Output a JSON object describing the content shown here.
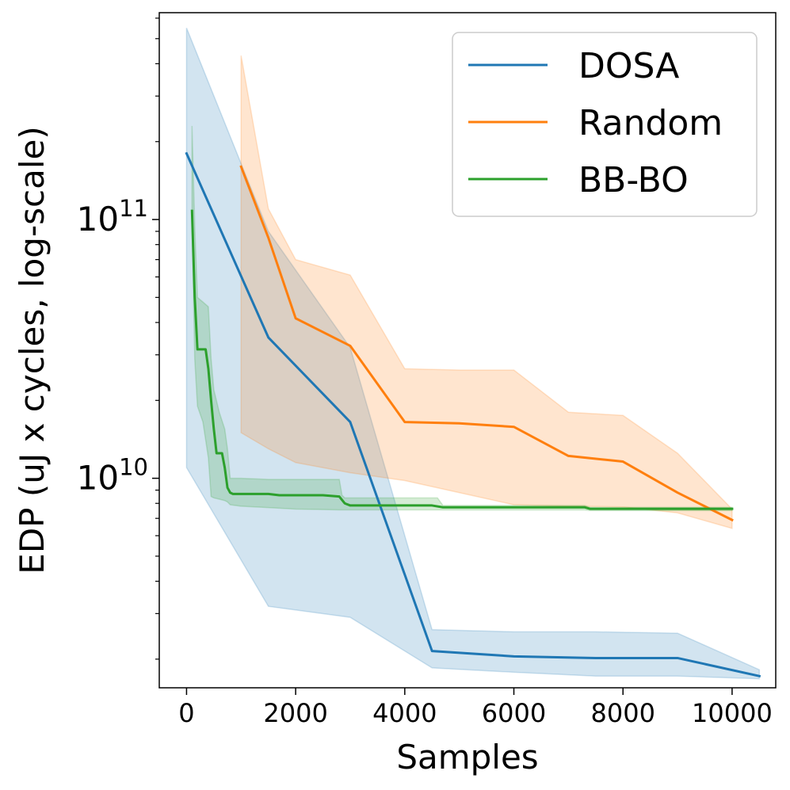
{
  "chart_data": {
    "type": "line",
    "title": "",
    "xlabel": "Samples",
    "ylabel": "EDP (uJ x cycles, log-scale)",
    "xlim": [
      -500,
      10800
    ],
    "ylim": [
      1550000000.0,
      630000000000.0
    ],
    "yscale": "log",
    "x_ticks": [
      0,
      2000,
      4000,
      6000,
      8000,
      10000
    ],
    "x_tick_labels": [
      "0",
      "2000",
      "4000",
      "6000",
      "8000",
      "10000"
    ],
    "y_major_ticks": [
      {
        "value": 10000000000.0,
        "base": "10",
        "exp": "10"
      },
      {
        "value": 100000000000.0,
        "base": "10",
        "exp": "11"
      }
    ],
    "grid": false,
    "legend_position": "top-right",
    "series": [
      {
        "name": "DOSA",
        "color": "#1f77b4",
        "x": [
          0,
          1500,
          3000,
          4500,
          6000,
          7500,
          9000,
          10500
        ],
        "y": [
          180000000000.0,
          35000000000.0,
          16500000000.0,
          2150000000.0,
          2050000000.0,
          2020000000.0,
          2020000000.0,
          1720000000.0
        ],
        "band_x": [
          0,
          1500,
          3000,
          4500,
          6000,
          7500,
          9000,
          10500
        ],
        "band_upper": [
          550000000000.0,
          90000000000.0,
          32000000000.0,
          2600000000.0,
          2550000000.0,
          2550000000.0,
          2520000000.0,
          1820000000.0
        ],
        "band_lower": [
          11000000000.0,
          3200000000.0,
          2900000000.0,
          1850000000.0,
          1780000000.0,
          1720000000.0,
          1720000000.0,
          1680000000.0
        ]
      },
      {
        "name": "Random",
        "color": "#ff7f0e",
        "x": [
          1000,
          1500,
          2000,
          3000,
          4000,
          5000,
          6000,
          7000,
          8000,
          9000,
          10000
        ],
        "y": [
          160000000000.0,
          85000000000.0,
          41500000000.0,
          32500000000.0,
          16500000000.0,
          16300000000.0,
          15800000000.0,
          12200000000.0,
          11600000000.0,
          8800000000.0,
          6900000000.0
        ],
        "band_x": [
          1000,
          1500,
          2000,
          3000,
          4000,
          5000,
          6000,
          7000,
          8000,
          9000,
          10000
        ],
        "band_upper": [
          430000000000.0,
          110000000000.0,
          70000000000.0,
          61000000000.0,
          26500000000.0,
          26200000000.0,
          26200000000.0,
          18000000000.0,
          17500000000.0,
          12500000000.0,
          7600000000.0
        ],
        "band_lower": [
          15000000000.0,
          13000000000.0,
          11500000000.0,
          10500000000.0,
          9800000000.0,
          8800000000.0,
          7900000000.0,
          7800000000.0,
          7750000000.0,
          7350000000.0,
          6400000000.0
        ]
      },
      {
        "name": "BB-BO",
        "color": "#2ca02c",
        "x": [
          100,
          150,
          200,
          250,
          300,
          350,
          400,
          450,
          500,
          550,
          600,
          650,
          700,
          750,
          800,
          850,
          900,
          1000,
          1200,
          1500,
          1700,
          2000,
          2500,
          2800,
          2900,
          3000,
          3500,
          4000,
          4500,
          4700,
          5000,
          6000,
          7000,
          7300,
          7400,
          8000,
          9000,
          10000
        ],
        "y": [
          108000000000.0,
          50000000000.0,
          31500000000.0,
          31500000000.0,
          31500000000.0,
          31500000000.0,
          26500000000.0,
          20000000000.0,
          15500000000.0,
          12500000000.0,
          12500000000.0,
          12500000000.0,
          11000000000.0,
          9200000000.0,
          8800000000.0,
          8700000000.0,
          8700000000.0,
          8700000000.0,
          8700000000.0,
          8700000000.0,
          8600000000.0,
          8600000000.0,
          8600000000.0,
          8500000000.0,
          8000000000.0,
          7850000000.0,
          7850000000.0,
          7850000000.0,
          7850000000.0,
          7720000000.0,
          7720000000.0,
          7720000000.0,
          7720000000.0,
          7720000000.0,
          7620000000.0,
          7620000000.0,
          7620000000.0,
          7620000000.0
        ],
        "band_x": [
          100,
          150,
          200,
          300,
          400,
          450,
          500,
          600,
          700,
          750,
          800,
          1000,
          1500,
          2000,
          2800,
          2850,
          2900,
          3000,
          4000,
          4600,
          4700,
          5000,
          6000,
          7000,
          7300,
          7400,
          8000,
          9000,
          10000
        ],
        "band_upper": [
          230000000000.0,
          95000000000.0,
          50000000000.0,
          48000000000.0,
          46000000000.0,
          29000000000.0,
          22000000000.0,
          18000000000.0,
          15500000000.0,
          13000000000.0,
          10000000000.0,
          10000000000.0,
          9900000000.0,
          9900000000.0,
          9900000000.0,
          8600000000.0,
          8400000000.0,
          8400000000.0,
          8400000000.0,
          8400000000.0,
          7850000000.0,
          7850000000.0,
          7850000000.0,
          7850000000.0,
          7850000000.0,
          7720000000.0,
          7720000000.0,
          7720000000.0,
          7720000000.0
        ],
        "band_lower": [
          98000000000.0,
          29000000000.0,
          19000000000.0,
          16500000000.0,
          12000000000.0,
          8500000000.0,
          8400000000.0,
          8300000000.0,
          8200000000.0,
          8100000000.0,
          7900000000.0,
          7800000000.0,
          7700000000.0,
          7600000000.0,
          7550000000.0,
          7550000000.0,
          7550000000.0,
          7550000000.0,
          7550000000.0,
          7550000000.0,
          7550000000.0,
          7550000000.0,
          7550000000.0,
          7550000000.0,
          7550000000.0,
          7500000000.0,
          7500000000.0,
          7500000000.0,
          7500000000.0
        ]
      }
    ]
  }
}
